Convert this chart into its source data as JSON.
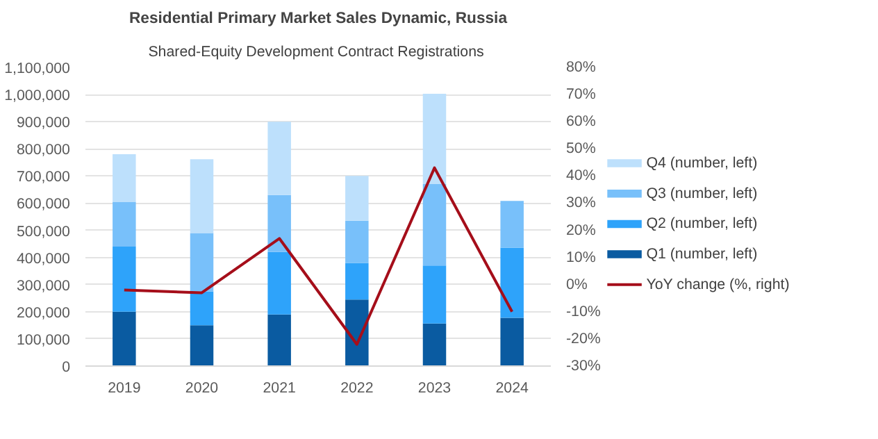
{
  "chart_data": {
    "type": "bar",
    "stacked": true,
    "title": "Residential Primary Market Sales Dynamic, Russia",
    "subtitle": "Shared-Equity  Development Contract Registrations",
    "categories": [
      "2019",
      "2020",
      "2021",
      "2022",
      "2023",
      "2024"
    ],
    "series": [
      {
        "name": "Q1 (number, left)",
        "color": "#0a5ba1",
        "values": [
          200000,
          150000,
          190000,
          245000,
          157000,
          178000
        ]
      },
      {
        "name": "Q2 (number, left)",
        "color": "#2ea3fa",
        "values": [
          240000,
          125000,
          230000,
          135000,
          213000,
          258000
        ]
      },
      {
        "name": "Q3 (number, left)",
        "color": "#78c0fa",
        "values": [
          165000,
          215000,
          210000,
          155000,
          300000,
          172000
        ]
      },
      {
        "name": "Q4 (number, left)",
        "color": "#bde0fc",
        "values": [
          175000,
          272000,
          270000,
          165000,
          333000,
          null
        ]
      },
      {
        "name": "YoY change (%, right)",
        "type": "line",
        "axis": "y2",
        "color": "#a50e1a",
        "values": [
          -2,
          -3,
          17,
          -22,
          43,
          -10
        ]
      }
    ],
    "ylim": [
      0,
      1100000
    ],
    "yticks": [
      0,
      {
        "value": 100000,
        "label": "100,000"
      },
      {
        "value": 200000,
        "label": "200,000"
      },
      {
        "value": 300000,
        "label": "300,000"
      },
      {
        "value": 400000,
        "label": "400,000"
      },
      {
        "value": 500000,
        "label": "500,000"
      },
      {
        "value": 600000,
        "label": "600,000"
      },
      {
        "value": 700000,
        "label": "700,000"
      },
      {
        "value": 800000,
        "label": "800,000"
      },
      {
        "value": 900000,
        "label": "900,000"
      },
      {
        "value": 1000000,
        "label": "1,000,000"
      },
      {
        "value": 1100000,
        "label": "1,100,000"
      }
    ],
    "y2lim": [
      -30,
      80
    ],
    "y2ticks": [
      {
        "value": -30,
        "label": "-30%"
      },
      {
        "value": -20,
        "label": "-20%"
      },
      {
        "value": -10,
        "label": "-10%"
      },
      {
        "value": 0,
        "label": "0%"
      },
      {
        "value": 10,
        "label": "10%"
      },
      {
        "value": 20,
        "label": "20%"
      },
      {
        "value": 30,
        "label": "30%"
      },
      {
        "value": 40,
        "label": "40%"
      },
      {
        "value": 50,
        "label": "50%"
      },
      {
        "value": 60,
        "label": "60%"
      },
      {
        "value": 70,
        "label": "70%"
      },
      {
        "value": 80,
        "label": "80%"
      }
    ],
    "grid": "y",
    "legend": "right"
  }
}
